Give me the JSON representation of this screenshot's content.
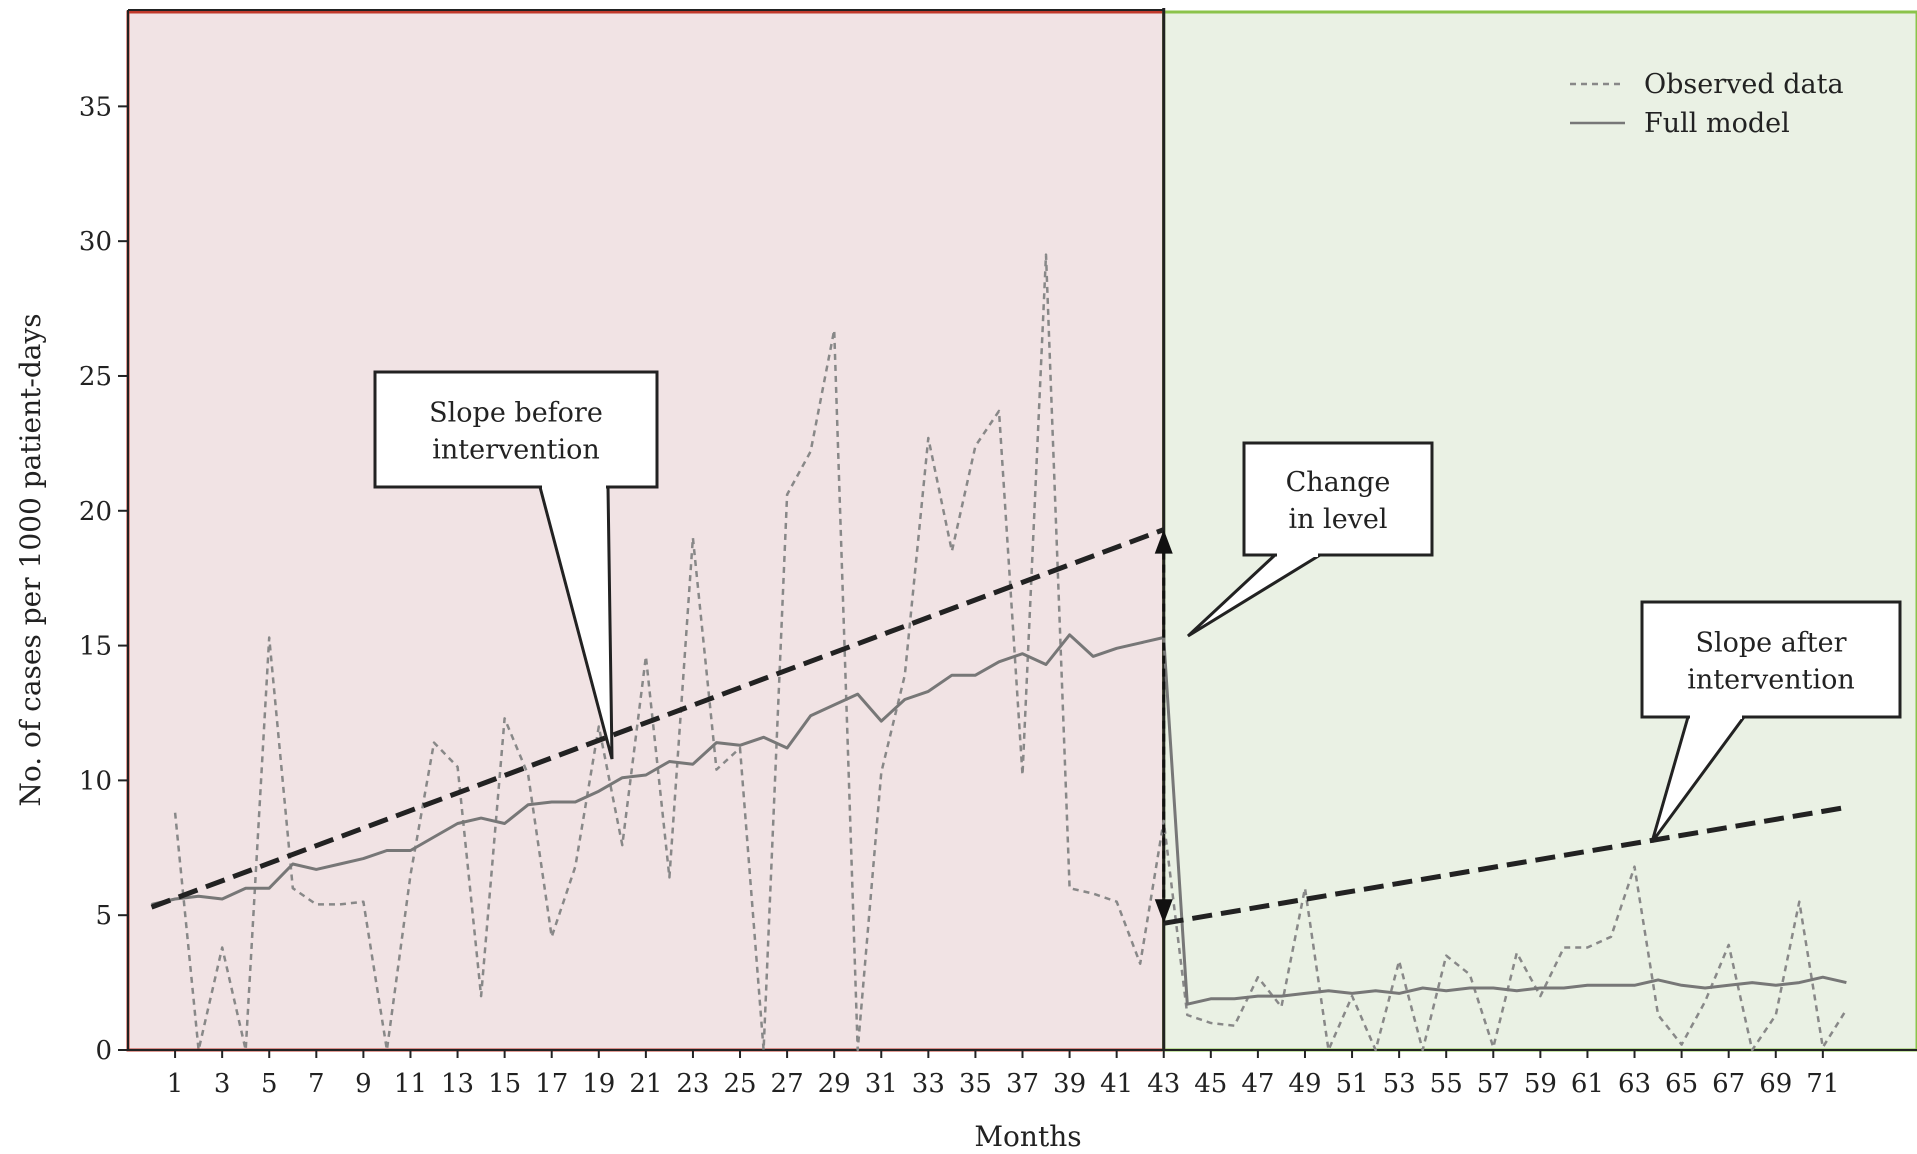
{
  "chart_data": {
    "type": "line",
    "title": "",
    "xlabel": "Months",
    "ylabel": "No. of cases per 1000 patient-days",
    "xlim": [
      -1,
      75
    ],
    "ylim": [
      0,
      38.5
    ],
    "x_ticks": [
      1,
      3,
      5,
      7,
      9,
      11,
      13,
      15,
      17,
      19,
      21,
      23,
      25,
      27,
      29,
      31,
      33,
      35,
      37,
      39,
      41,
      43,
      45,
      47,
      49,
      51,
      53,
      55,
      57,
      59,
      61,
      63,
      65,
      67,
      69,
      71
    ],
    "y_ticks": [
      0,
      5,
      10,
      15,
      20,
      25,
      30,
      35
    ],
    "grid": false,
    "legend_position": "top-right",
    "intervention_month": 43,
    "periods": [
      {
        "start": -1,
        "end": 43,
        "color": "#f1e3e4",
        "border": "#c0392b"
      },
      {
        "start": 43,
        "end": 75,
        "color": "#eaf1e4",
        "border": "#8bc34a"
      }
    ],
    "series": [
      {
        "name": "Observed data",
        "style": "dashed",
        "color": "#888888",
        "x": [
          1,
          2,
          3,
          4,
          5,
          6,
          7,
          8,
          9,
          10,
          11,
          12,
          13,
          14,
          15,
          16,
          17,
          18,
          19,
          20,
          21,
          22,
          23,
          24,
          25,
          26,
          27,
          28,
          29,
          30,
          31,
          32,
          33,
          34,
          35,
          36,
          37,
          38,
          39,
          40,
          41,
          42,
          43,
          44,
          45,
          46,
          47,
          48,
          49,
          50,
          51,
          52,
          53,
          54,
          55,
          56,
          57,
          58,
          59,
          60,
          61,
          62,
          63,
          64,
          65,
          66,
          67,
          68,
          69,
          70,
          71,
          72
        ],
        "y": [
          8.8,
          0,
          3.8,
          0,
          15.3,
          6,
          5.4,
          5.4,
          5.5,
          0,
          6.5,
          11.4,
          10.5,
          2,
          12.3,
          10.2,
          4.2,
          6.8,
          12,
          7.6,
          14.6,
          6.4,
          19,
          10.4,
          11.2,
          0,
          20.6,
          22.2,
          26.7,
          0,
          10.3,
          13.9,
          22.7,
          18.5,
          22.4,
          23.7,
          10.2,
          29.5,
          6,
          5.8,
          5.5,
          3.2,
          8.5,
          1.3,
          1,
          0.9,
          2.7,
          1.6,
          6,
          0,
          2,
          0,
          3.3,
          0,
          3.5,
          2.8,
          0.1,
          3.6,
          2,
          3.8,
          3.8,
          4.2,
          6.8,
          1.3,
          0.2,
          1.8,
          3.9,
          0,
          1.3,
          5.5,
          0.1,
          1.5
        ]
      },
      {
        "name": "Full model",
        "style": "solid",
        "color": "#777777",
        "x": [
          0,
          1,
          2,
          3,
          4,
          5,
          6,
          7,
          8,
          9,
          10,
          11,
          12,
          13,
          14,
          15,
          16,
          17,
          18,
          19,
          20,
          21,
          22,
          23,
          24,
          25,
          26,
          27,
          28,
          29,
          30,
          31,
          32,
          33,
          34,
          35,
          36,
          37,
          38,
          39,
          40,
          41,
          42,
          43,
          44,
          45,
          46,
          47,
          48,
          49,
          50,
          51,
          52,
          53,
          54,
          55,
          56,
          57,
          58,
          59,
          60,
          61,
          62,
          63,
          64,
          65,
          66,
          67,
          68,
          69,
          70,
          71,
          72
        ],
        "y": [
          5.4,
          5.6,
          5.7,
          5.6,
          6.0,
          6.0,
          6.9,
          6.7,
          6.9,
          7.1,
          7.4,
          7.4,
          7.9,
          8.4,
          8.6,
          8.4,
          9.1,
          9.2,
          9.2,
          9.6,
          10.1,
          10.2,
          10.7,
          10.6,
          11.4,
          11.3,
          11.6,
          11.2,
          12.4,
          12.8,
          13.2,
          12.2,
          13.0,
          13.3,
          13.9,
          13.9,
          14.4,
          14.7,
          14.3,
          15.4,
          14.6,
          14.9,
          15.1,
          15.3,
          1.7,
          1.9,
          1.9,
          2.0,
          2.0,
          2.1,
          2.2,
          2.1,
          2.2,
          2.1,
          2.3,
          2.2,
          2.3,
          2.3,
          2.2,
          2.3,
          2.3,
          2.4,
          2.4,
          2.4,
          2.6,
          2.4,
          2.3,
          2.4,
          2.5,
          2.4,
          2.5,
          2.7,
          2.5
        ]
      }
    ],
    "trend_lines": [
      {
        "x": [
          0,
          43
        ],
        "y": [
          5.3,
          19.3
        ],
        "style": "bold-dashed",
        "color": "#222222"
      },
      {
        "x": [
          43,
          72
        ],
        "y": [
          4.7,
          9.0
        ],
        "style": "bold-dashed",
        "color": "#222222"
      }
    ],
    "level_change": {
      "x": 43,
      "y_from": 19.3,
      "y_to": 4.7
    },
    "annotations": [
      {
        "text": [
          "Slope before",
          "intervention"
        ]
      },
      {
        "text": [
          "Change",
          "in level"
        ]
      },
      {
        "text": [
          "Slope after",
          "intervention"
        ]
      }
    ]
  }
}
